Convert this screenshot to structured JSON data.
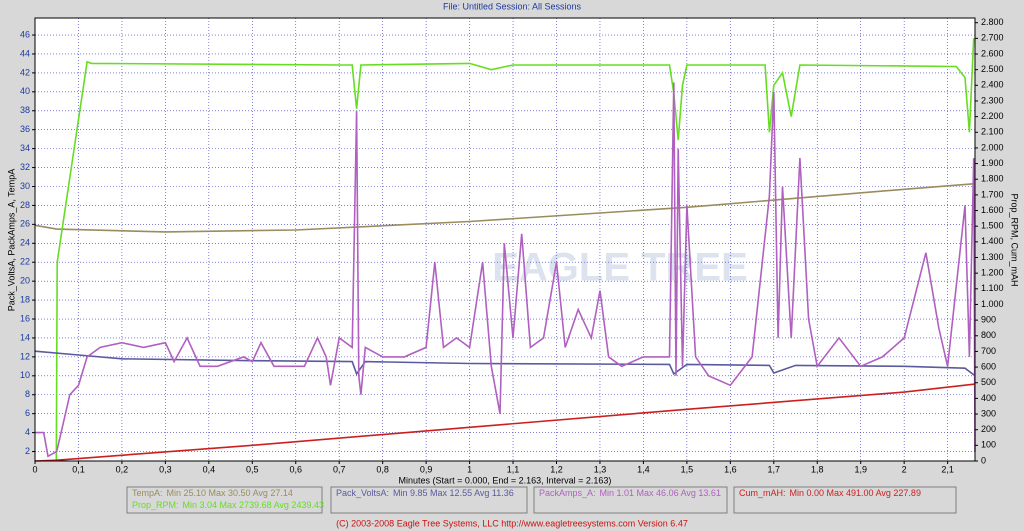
{
  "chart_data": {
    "type": "line",
    "title": "File: Untitled   Session: All Sessions",
    "x_label": "Minutes (Start = 0.000, End = 2.163, Interval = 2.163)",
    "y_label": "Pack_VoltsA, PackAmps_A, TempA",
    "y2_label": "Prop_RPM, Cum_mAH",
    "watermark": "EAGLE TREE",
    "footer": "(C) 2003-2008 Eagle Tree Systems, LLC     http://www.eagletreesystems.com     Version 6.47",
    "grid": true,
    "xlim": [
      0,
      2.163
    ],
    "ylim": [
      1,
      47.8
    ],
    "y2lim": [
      0,
      2830
    ],
    "xticks": [
      0,
      {
        "value": 0.1,
        "label": "0,1"
      },
      {
        "value": 0.2,
        "label": "0,2"
      },
      {
        "value": 0.3,
        "label": "0,3"
      },
      {
        "value": 0.4,
        "label": "0,4"
      },
      {
        "value": 0.5,
        "label": "0,5"
      },
      {
        "value": 0.6,
        "label": "0,6"
      },
      {
        "value": 0.7,
        "label": "0,7"
      },
      {
        "value": 0.8,
        "label": "0,8"
      },
      {
        "value": 0.9,
        "label": "0,9"
      },
      1,
      {
        "value": 1.1,
        "label": "1,1"
      },
      {
        "value": 1.2,
        "label": "1,2"
      },
      {
        "value": 1.3,
        "label": "1,3"
      },
      {
        "value": 1.4,
        "label": "1,4"
      },
      {
        "value": 1.5,
        "label": "1,5"
      },
      {
        "value": 1.6,
        "label": "1,6"
      },
      {
        "value": 1.7,
        "label": "1,7"
      },
      {
        "value": 1.8,
        "label": "1,8"
      },
      {
        "value": 1.9,
        "label": "1,9"
      },
      2,
      {
        "value": 2.1,
        "label": "2,1"
      }
    ],
    "yticks": [
      2,
      4,
      6,
      8,
      10,
      12,
      14,
      16,
      18,
      20,
      22,
      24,
      26,
      28,
      30,
      32,
      34,
      36,
      38,
      40,
      42,
      44,
      46
    ],
    "y2ticks": [
      0,
      100,
      200,
      300,
      400,
      500,
      600,
      700,
      800,
      900,
      {
        "value": 1000,
        "label": "1.000"
      },
      {
        "value": 1100,
        "label": "1.100"
      },
      {
        "value": 1200,
        "label": "1.200"
      },
      {
        "value": 1300,
        "label": "1.300"
      },
      {
        "value": 1400,
        "label": "1.400"
      },
      {
        "value": 1500,
        "label": "1.500"
      },
      {
        "value": 1600,
        "label": "1.600"
      },
      {
        "value": 1700,
        "label": "1.700"
      },
      {
        "value": 1800,
        "label": "1.800"
      },
      {
        "value": 1900,
        "label": "1.900"
      },
      {
        "value": 2000,
        "label": "2.000"
      },
      {
        "value": 2100,
        "label": "2.100"
      },
      {
        "value": 2200,
        "label": "2.200"
      },
      {
        "value": 2300,
        "label": "2.300"
      },
      {
        "value": 2400,
        "label": "2.400"
      },
      {
        "value": 2500,
        "label": "2.500"
      },
      {
        "value": 2600,
        "label": "2.600"
      },
      {
        "value": 2700,
        "label": "2.700"
      },
      {
        "value": 2800,
        "label": "2.800"
      }
    ],
    "series": [
      {
        "name": "TempA:",
        "stats": "Min 25.10   Max 30.50   Avg 27.14",
        "color": "#9a8c5c",
        "axis": "y",
        "x": [
          0,
          0.05,
          0.3,
          0.6,
          1.0,
          1.5,
          2.0,
          2.163
        ],
        "values": [
          25.9,
          25.5,
          25.2,
          25.4,
          26.3,
          27.8,
          29.7,
          30.3
        ]
      },
      {
        "name": "Prop_RPM:",
        "stats": "Min 3.04   Max 2739.68   Avg 2439.43",
        "color": "#66dd22",
        "axis": "y2",
        "x": [
          0.049,
          0.051,
          0.12,
          0.13,
          0.7,
          0.73,
          0.74,
          0.75,
          1.0,
          1.05,
          1.1,
          1.46,
          1.47,
          1.48,
          1.49,
          1.5,
          1.68,
          1.69,
          1.7,
          1.72,
          1.74,
          1.76,
          2.12,
          2.14,
          2.15,
          2.16
        ],
        "values": [
          0,
          1270,
          2550,
          2540,
          2530,
          2530,
          2250,
          2530,
          2540,
          2500,
          2530,
          2530,
          2350,
          2050,
          2400,
          2530,
          2530,
          2100,
          2400,
          2480,
          2200,
          2530,
          2520,
          2450,
          2100,
          2700
        ]
      },
      {
        "name": "Pack_VoltsA:",
        "stats": "Min 9.85   Max 12.55   Avg 11.36",
        "color": "#5a5aa0",
        "axis": "y",
        "x": [
          0,
          0.1,
          0.2,
          0.5,
          0.73,
          0.74,
          0.76,
          1.0,
          1.46,
          1.47,
          1.5,
          1.69,
          1.7,
          1.75,
          2.0,
          2.14,
          2.163
        ],
        "values": [
          12.6,
          12.2,
          11.8,
          11.6,
          11.5,
          10.2,
          11.5,
          11.3,
          11.2,
          10.2,
          11.2,
          11.1,
          10.3,
          11.1,
          11.0,
          10.8,
          10.0
        ]
      },
      {
        "name": "PackAmps_A:",
        "stats": "Min 1.01   Max 46.06   Avg 13.61",
        "color": "#b060c0",
        "axis": "y",
        "x": [
          0,
          0.02,
          0.03,
          0.05,
          0.06,
          0.08,
          0.1,
          0.12,
          0.15,
          0.2,
          0.25,
          0.3,
          0.32,
          0.35,
          0.38,
          0.42,
          0.48,
          0.5,
          0.52,
          0.55,
          0.62,
          0.65,
          0.67,
          0.68,
          0.7,
          0.73,
          0.74,
          0.745,
          0.75,
          0.76,
          0.8,
          0.85,
          0.9,
          0.92,
          0.94,
          0.97,
          1.0,
          1.03,
          1.05,
          1.07,
          1.08,
          1.1,
          1.12,
          1.14,
          1.17,
          1.2,
          1.22,
          1.25,
          1.28,
          1.3,
          1.32,
          1.35,
          1.4,
          1.46,
          1.47,
          1.475,
          1.48,
          1.49,
          1.5,
          1.52,
          1.55,
          1.6,
          1.65,
          1.69,
          1.7,
          1.71,
          1.72,
          1.74,
          1.76,
          1.78,
          1.8,
          1.85,
          1.9,
          1.95,
          2.0,
          2.05,
          2.08,
          2.1,
          2.14,
          2.15,
          2.16,
          2.163
        ],
        "values": [
          4,
          4,
          1.5,
          2,
          4,
          8,
          9,
          12,
          13,
          13.5,
          13,
          13.5,
          11.5,
          14,
          11,
          11,
          12,
          11.5,
          13.5,
          11,
          11,
          14,
          12,
          9,
          14,
          13,
          38,
          10,
          8,
          13,
          12,
          12,
          13,
          22,
          13,
          14,
          13,
          22,
          11,
          6,
          24,
          14,
          25,
          13,
          14,
          22,
          13,
          17,
          14,
          19,
          12,
          11,
          12,
          12,
          41,
          10,
          34,
          11,
          28,
          12,
          10,
          9,
          12,
          29,
          40,
          14,
          30,
          14,
          33,
          16,
          11,
          14,
          11,
          12,
          14,
          23,
          15,
          11,
          28,
          12,
          33,
          2
        ]
      },
      {
        "name": "Cum_mAH:",
        "stats": "Min 0.00   Max 491.00   Avg 227.89",
        "color": "#cc2020",
        "axis": "y2",
        "x": [
          0,
          0.05,
          0.5,
          1.0,
          1.5,
          2.0,
          2.163
        ],
        "values": [
          0,
          5,
          100,
          215,
          330,
          440,
          491
        ]
      }
    ]
  }
}
